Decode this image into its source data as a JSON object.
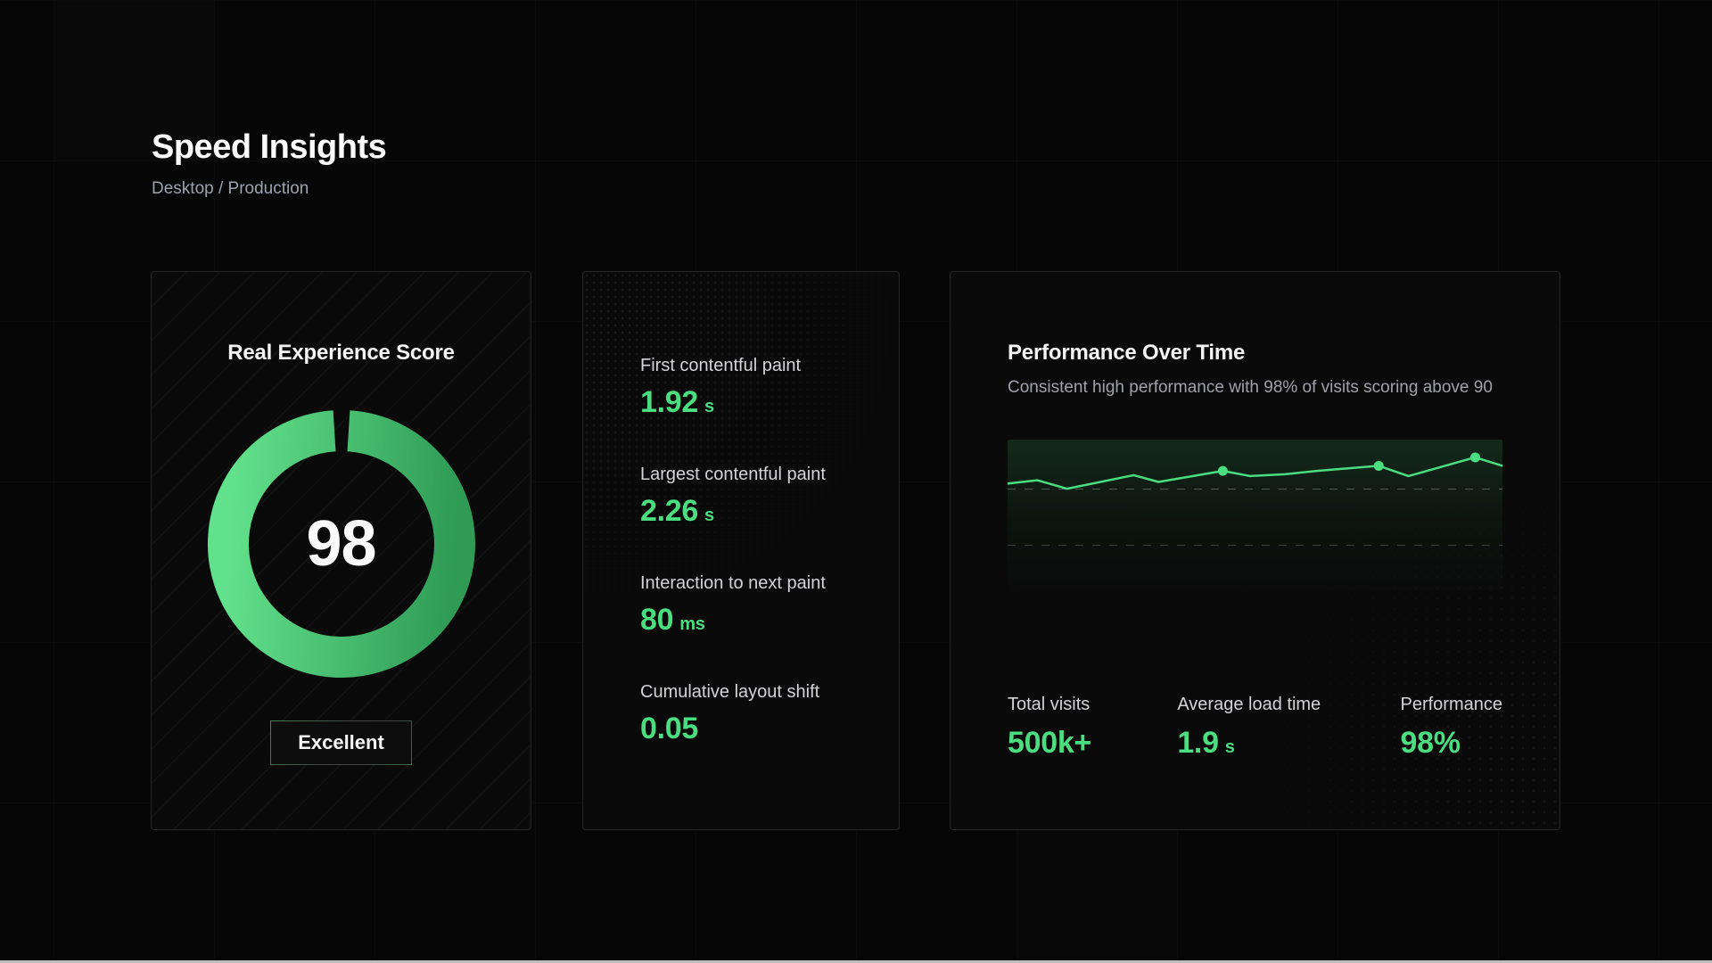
{
  "page": {
    "bg": "#060606",
    "accent": "#4ade80"
  },
  "header": {
    "title": "Speed Insights",
    "subtitle": "Desktop / Production"
  },
  "score_card": {
    "title": "Real Experience Score",
    "score": "98",
    "score_pct": 98,
    "badge": "Excellent",
    "ring_color_top": "#62e18c",
    "ring_color_bottom": "#2f9b55"
  },
  "metrics_card": {
    "metrics": [
      {
        "label": "First contentful paint",
        "value": "1.92",
        "unit": "s"
      },
      {
        "label": "Largest contentful paint",
        "value": "2.26",
        "unit": "s"
      },
      {
        "label": "Interaction to next paint",
        "value": "80",
        "unit": "ms"
      },
      {
        "label": "Cumulative layout shift",
        "value": "0.05",
        "unit": ""
      }
    ]
  },
  "performance_card": {
    "title": "Performance Over Time",
    "subtitle": "Consistent high performance with 98% of visits scoring above 90",
    "stats": [
      {
        "label": "Total visits",
        "value": "500k+",
        "unit": ""
      },
      {
        "label": "Average load time",
        "value": "1.9",
        "unit": "s"
      },
      {
        "label": "Performance",
        "value": "98%",
        "unit": ""
      }
    ]
  },
  "chart_data": {
    "type": "line",
    "title": "Performance Over Time",
    "line_color": "#4ade80",
    "area_fill": "green gradient fading to transparent, top to bottom",
    "grid": "two horizontal dashed gridlines",
    "gridlines_pct_from_top": [
      29,
      62
    ],
    "points_pct": [
      [
        0,
        26
      ],
      [
        6,
        24
      ],
      [
        12,
        29
      ],
      [
        25.5,
        21
      ],
      [
        30.5,
        25
      ],
      [
        43.5,
        18.5
      ],
      [
        49,
        21.5
      ],
      [
        56,
        20.5
      ],
      [
        62.5,
        18.5
      ],
      [
        75,
        15.5
      ],
      [
        81,
        21.5
      ],
      [
        94.5,
        10.5
      ],
      [
        100,
        15.5
      ]
    ],
    "marker_point_indexes": [
      5,
      9,
      11
    ],
    "x_axis_labels": [],
    "y_axis_labels": []
  }
}
